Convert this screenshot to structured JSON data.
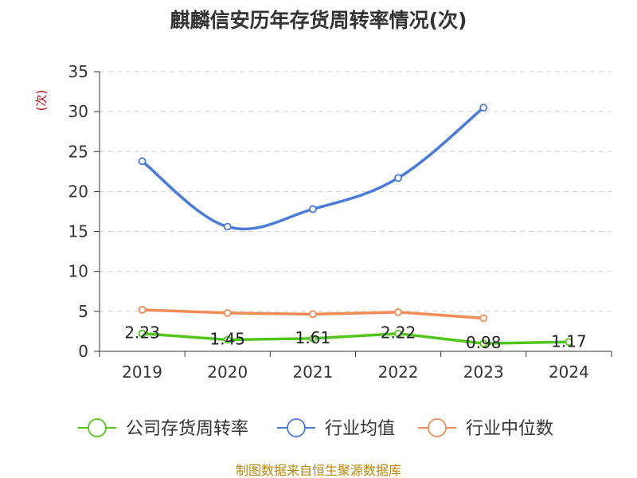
{
  "chart_data": {
    "type": "line",
    "title": "麒麟信安历年存货周转率情况(次)",
    "y_unit": "(次)",
    "categories": [
      "2019",
      "2020",
      "2021",
      "2022",
      "2023",
      "2024"
    ],
    "ylim": [
      0,
      35
    ],
    "yticks": [
      0,
      5,
      10,
      15,
      20,
      25,
      30,
      35
    ],
    "grid": true,
    "legend_position": "bottom",
    "series": [
      {
        "name": "公司存货周转率",
        "color": "#52c41a",
        "values": [
          2.23,
          1.45,
          1.61,
          2.22,
          0.98,
          1.17
        ],
        "labels": [
          "2.23",
          "1.45",
          "1.61",
          "2.22",
          "0.98",
          "1.17"
        ]
      },
      {
        "name": "行业均值",
        "color": "#4a7bd6",
        "values": [
          23.8,
          15.6,
          17.8,
          21.7,
          30.5,
          null
        ]
      },
      {
        "name": "行业中位数",
        "color": "#f28c55",
        "values": [
          5.2,
          4.8,
          4.65,
          4.9,
          4.15,
          null
        ]
      }
    ],
    "source": "制图数据来自恒生聚源数据库"
  }
}
